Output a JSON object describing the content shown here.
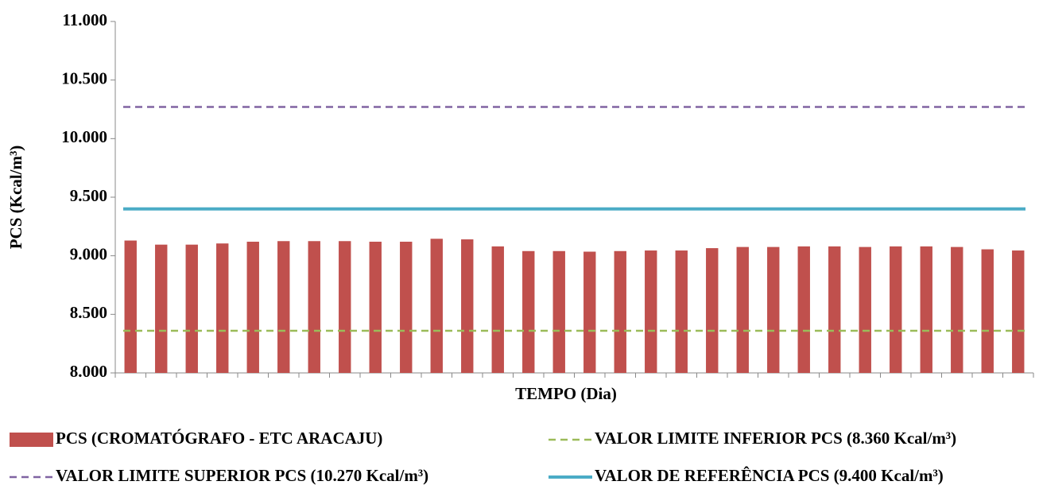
{
  "chart_data": {
    "type": "bar",
    "x_label": "TEMPO (Dia)",
    "y_label": "PCS (Kcal/m³)",
    "categories": [
      null,
      null,
      null,
      null,
      null,
      null,
      null,
      null,
      null,
      null,
      null,
      null,
      null,
      null,
      null,
      null,
      null,
      null,
      null,
      null,
      null,
      null,
      null,
      null,
      null,
      null,
      null,
      null,
      null,
      null
    ],
    "series": [
      {
        "name": "PCS (CROMATÓGRAFO - ETC ARACAJU)",
        "color": "#c0504d",
        "values": [
          9130,
          9095,
          9095,
          9105,
          9120,
          9125,
          9125,
          9125,
          9120,
          9120,
          9145,
          9140,
          9080,
          9040,
          9040,
          9035,
          9040,
          9045,
          9045,
          9065,
          9075,
          9075,
          9080,
          9080,
          9075,
          9080,
          9080,
          9075,
          9055,
          9045
        ]
      }
    ],
    "lines": [
      {
        "name": "VALOR LIMITE INFERIOR PCS (8.360 Kcal/m³)",
        "value": 8360,
        "color": "#9bbb59",
        "style": "dashed"
      },
      {
        "name": "VALOR LIMITE SUPERIOR PCS (10.270 Kcal/m³)",
        "value": 10270,
        "color": "#8064a2",
        "style": "dashed"
      },
      {
        "name": "VALOR DE REFERÊNCIA PCS (9.400 Kcal/m³)",
        "value": 9400,
        "color": "#4bacc6",
        "style": "solid"
      }
    ],
    "ylim": [
      8000,
      11000
    ],
    "yticks": [
      {
        "value": 8000,
        "label": "8.000"
      },
      {
        "value": 8500,
        "label": "8.500"
      },
      {
        "value": 9000,
        "label": "9.000"
      },
      {
        "value": 9500,
        "label": "9.500"
      },
      {
        "value": 10000,
        "label": "10.000"
      },
      {
        "value": 10500,
        "label": "10.500"
      },
      {
        "value": 11000,
        "label": "11.000"
      }
    ],
    "grid": false
  }
}
